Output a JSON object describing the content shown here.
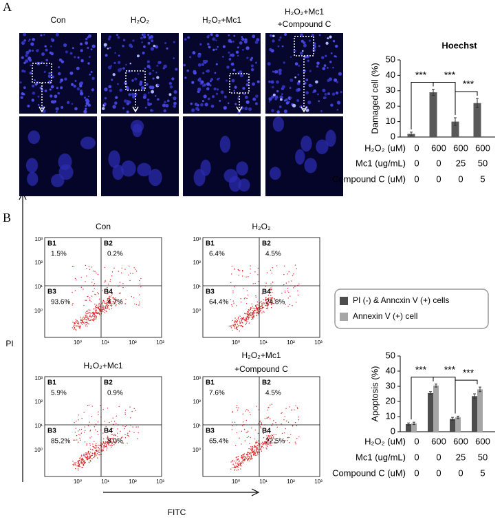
{
  "panel_a": {
    "label": "A",
    "image_titles": [
      [
        "Con"
      ],
      [
        "H₂O₂"
      ],
      [
        "H₂O₂+Mc1"
      ],
      [
        "H₂O₂+Mc1",
        "+Compound C"
      ]
    ]
  },
  "panel_b": {
    "label": "B",
    "flow": {
      "y_label": "PI",
      "x_label": "FITC",
      "ticks": [
        "10⁰",
        "10¹",
        "10²",
        "10³"
      ],
      "plots": [
        {
          "title": [
            "Con"
          ],
          "quadrants": [
            {
              "name": "B1",
              "value": "1.5%"
            },
            {
              "name": "B2",
              "value": "0.2%"
            },
            {
              "name": "B3",
              "value": "93.6%"
            },
            {
              "name": "B4",
              "value": "4.7%"
            }
          ]
        },
        {
          "title": [
            "H₂O₂"
          ],
          "quadrants": [
            {
              "name": "B1",
              "value": "6.4%"
            },
            {
              "name": "B2",
              "value": "4.5%"
            },
            {
              "name": "B3",
              "value": "64.4%"
            },
            {
              "name": "B4",
              "value": "24.8%"
            }
          ]
        },
        {
          "title": [
            "H₂O₂+Mc1"
          ],
          "quadrants": [
            {
              "name": "B1",
              "value": "5.9%"
            },
            {
              "name": "B2",
              "value": "0.9%"
            },
            {
              "name": "B3",
              "value": "85.2%"
            },
            {
              "name": "B4",
              "value": "8.0%"
            }
          ]
        },
        {
          "title": [
            "H₂O₂+Mc1",
            "+Compound C"
          ],
          "quadrants": [
            {
              "name": "B1",
              "value": "7.6%"
            },
            {
              "name": "B2",
              "value": "4.5%"
            },
            {
              "name": "B3",
              "value": "65.4%"
            },
            {
              "name": "B4",
              "value": "22.5%"
            }
          ]
        }
      ]
    }
  },
  "chart_data": [
    {
      "type": "bar",
      "title": "Hoechst",
      "y_label": "Damaged cell (%)",
      "ylim": [
        0,
        50
      ],
      "yticks": [
        0,
        10,
        20,
        30,
        40,
        50
      ],
      "grid": false,
      "series": [
        {
          "name": null,
          "color": "#595959",
          "values": [
            2,
            29,
            10,
            22
          ],
          "errors": [
            1.2,
            2,
            2.5,
            3
          ]
        }
      ],
      "annotations": [
        "***",
        "***",
        "***"
      ],
      "conditions": [
        {
          "label": "H₂O₂ (uM)",
          "values": [
            0,
            600,
            600,
            600
          ]
        },
        {
          "label": "Mc1 (ug/mL)",
          "values": [
            0,
            0,
            25,
            50
          ]
        },
        {
          "label": "Compound C (uM)",
          "values": [
            0,
            0,
            0,
            5
          ]
        }
      ]
    },
    {
      "type": "bar",
      "y_label": "Apoptosis (%)",
      "ylim": [
        0,
        50
      ],
      "yticks": [
        0,
        10,
        20,
        30,
        40,
        50
      ],
      "grid": false,
      "series": [
        {
          "name": "PI (-) & Anncxin V (+) cells",
          "color": "#4d4d4d",
          "values": [
            5,
            25.5,
            8.5,
            23.5
          ],
          "errors": [
            0.8,
            1,
            1,
            1.5
          ]
        },
        {
          "name": "Annexin V (+) cell",
          "color": "#a6a6a6",
          "values": [
            5.5,
            30.5,
            9.5,
            28
          ],
          "errors": [
            0.8,
            1,
            0.8,
            1.5
          ]
        }
      ],
      "annotations": [
        "***",
        "***",
        "***"
      ],
      "conditions": [
        {
          "label": "H₂O₂ (uM)",
          "values": [
            0,
            600,
            600,
            600
          ]
        },
        {
          "label": "Mc1 (ug/mL)",
          "values": [
            0,
            0,
            25,
            50
          ]
        },
        {
          "label": "Compound C (uM)",
          "values": [
            0,
            0,
            0,
            5
          ]
        }
      ]
    }
  ]
}
